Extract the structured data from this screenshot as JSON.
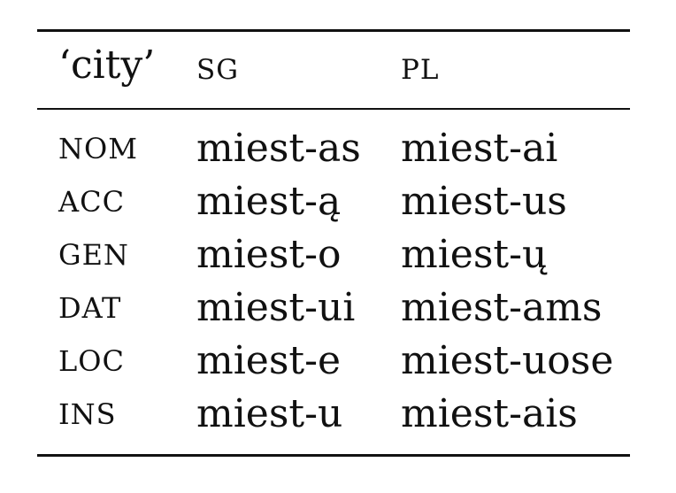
{
  "table": {
    "lemma": "‘city’",
    "col_sg": "SG",
    "col_pl": "PL",
    "rows": [
      {
        "case": "NOM",
        "sg": "miest-as",
        "pl": "miest-ai"
      },
      {
        "case": "ACC",
        "sg": "miest-ą",
        "pl": "miest-us"
      },
      {
        "case": "GEN",
        "sg": "miest-o",
        "pl": "miest-ų"
      },
      {
        "case": "DAT",
        "sg": "miest-ui",
        "pl": "miest-ams"
      },
      {
        "case": "LOC",
        "sg": "miest-e",
        "pl": "miest-uose"
      },
      {
        "case": "INS",
        "sg": "miest-u",
        "pl": "miest-ais"
      }
    ]
  }
}
